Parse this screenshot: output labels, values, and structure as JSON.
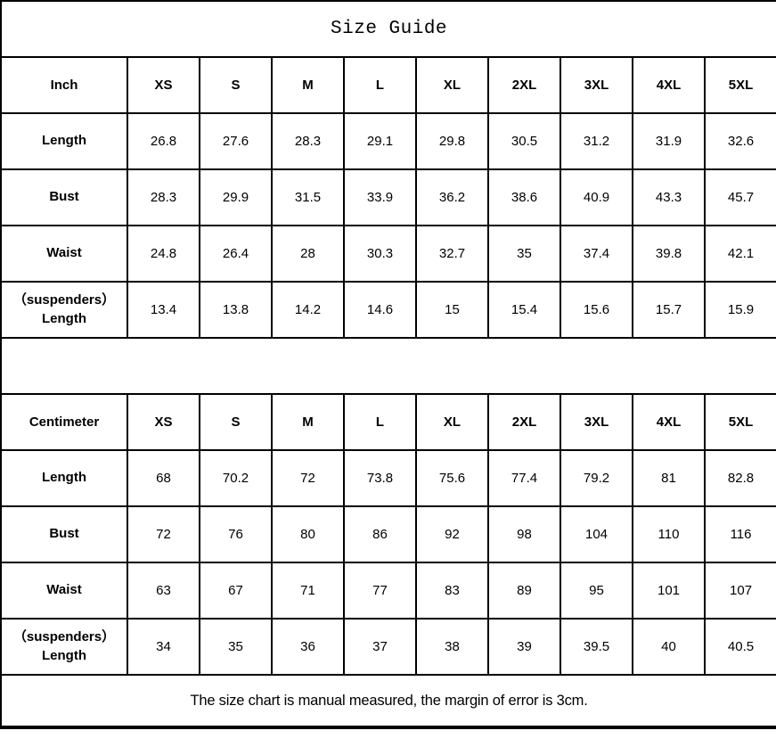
{
  "title": "Size Guide",
  "sizes": [
    "XS",
    "S",
    "M",
    "L",
    "XL",
    "2XL",
    "3XL",
    "4XL",
    "5XL"
  ],
  "tables": [
    {
      "unit_label": "Inch",
      "rows": [
        {
          "label": "Length",
          "values": [
            "26.8",
            "27.6",
            "28.3",
            "29.1",
            "29.8",
            "30.5",
            "31.2",
            "31.9",
            "32.6"
          ]
        },
        {
          "label": "Bust",
          "values": [
            "28.3",
            "29.9",
            "31.5",
            "33.9",
            "36.2",
            "38.6",
            "40.9",
            "43.3",
            "45.7"
          ]
        },
        {
          "label": "Waist",
          "values": [
            "24.8",
            "26.4",
            "28",
            "30.3",
            "32.7",
            "35",
            "37.4",
            "39.8",
            "42.1"
          ]
        },
        {
          "label": "（suspenders）\nLength",
          "values": [
            "13.4",
            "13.8",
            "14.2",
            "14.6",
            "15",
            "15.4",
            "15.6",
            "15.7",
            "15.9"
          ]
        }
      ]
    },
    {
      "unit_label": "Centimeter",
      "rows": [
        {
          "label": "Length",
          "values": [
            "68",
            "70.2",
            "72",
            "73.8",
            "75.6",
            "77.4",
            "79.2",
            "81",
            "82.8"
          ]
        },
        {
          "label": "Bust",
          "values": [
            "72",
            "76",
            "80",
            "86",
            "92",
            "98",
            "104",
            "110",
            "116"
          ]
        },
        {
          "label": "Waist",
          "values": [
            "63",
            "67",
            "71",
            "77",
            "83",
            "89",
            "95",
            "101",
            "107"
          ]
        },
        {
          "label": "（suspenders）\nLength",
          "values": [
            "34",
            "35",
            "36",
            "37",
            "38",
            "39",
            "39.5",
            "40",
            "40.5"
          ]
        }
      ]
    }
  ],
  "footer_note": "The size chart is manual measured, the margin of error is 3cm.",
  "colors": {
    "border": "#000000",
    "background": "#ffffff",
    "text": "#000000"
  }
}
